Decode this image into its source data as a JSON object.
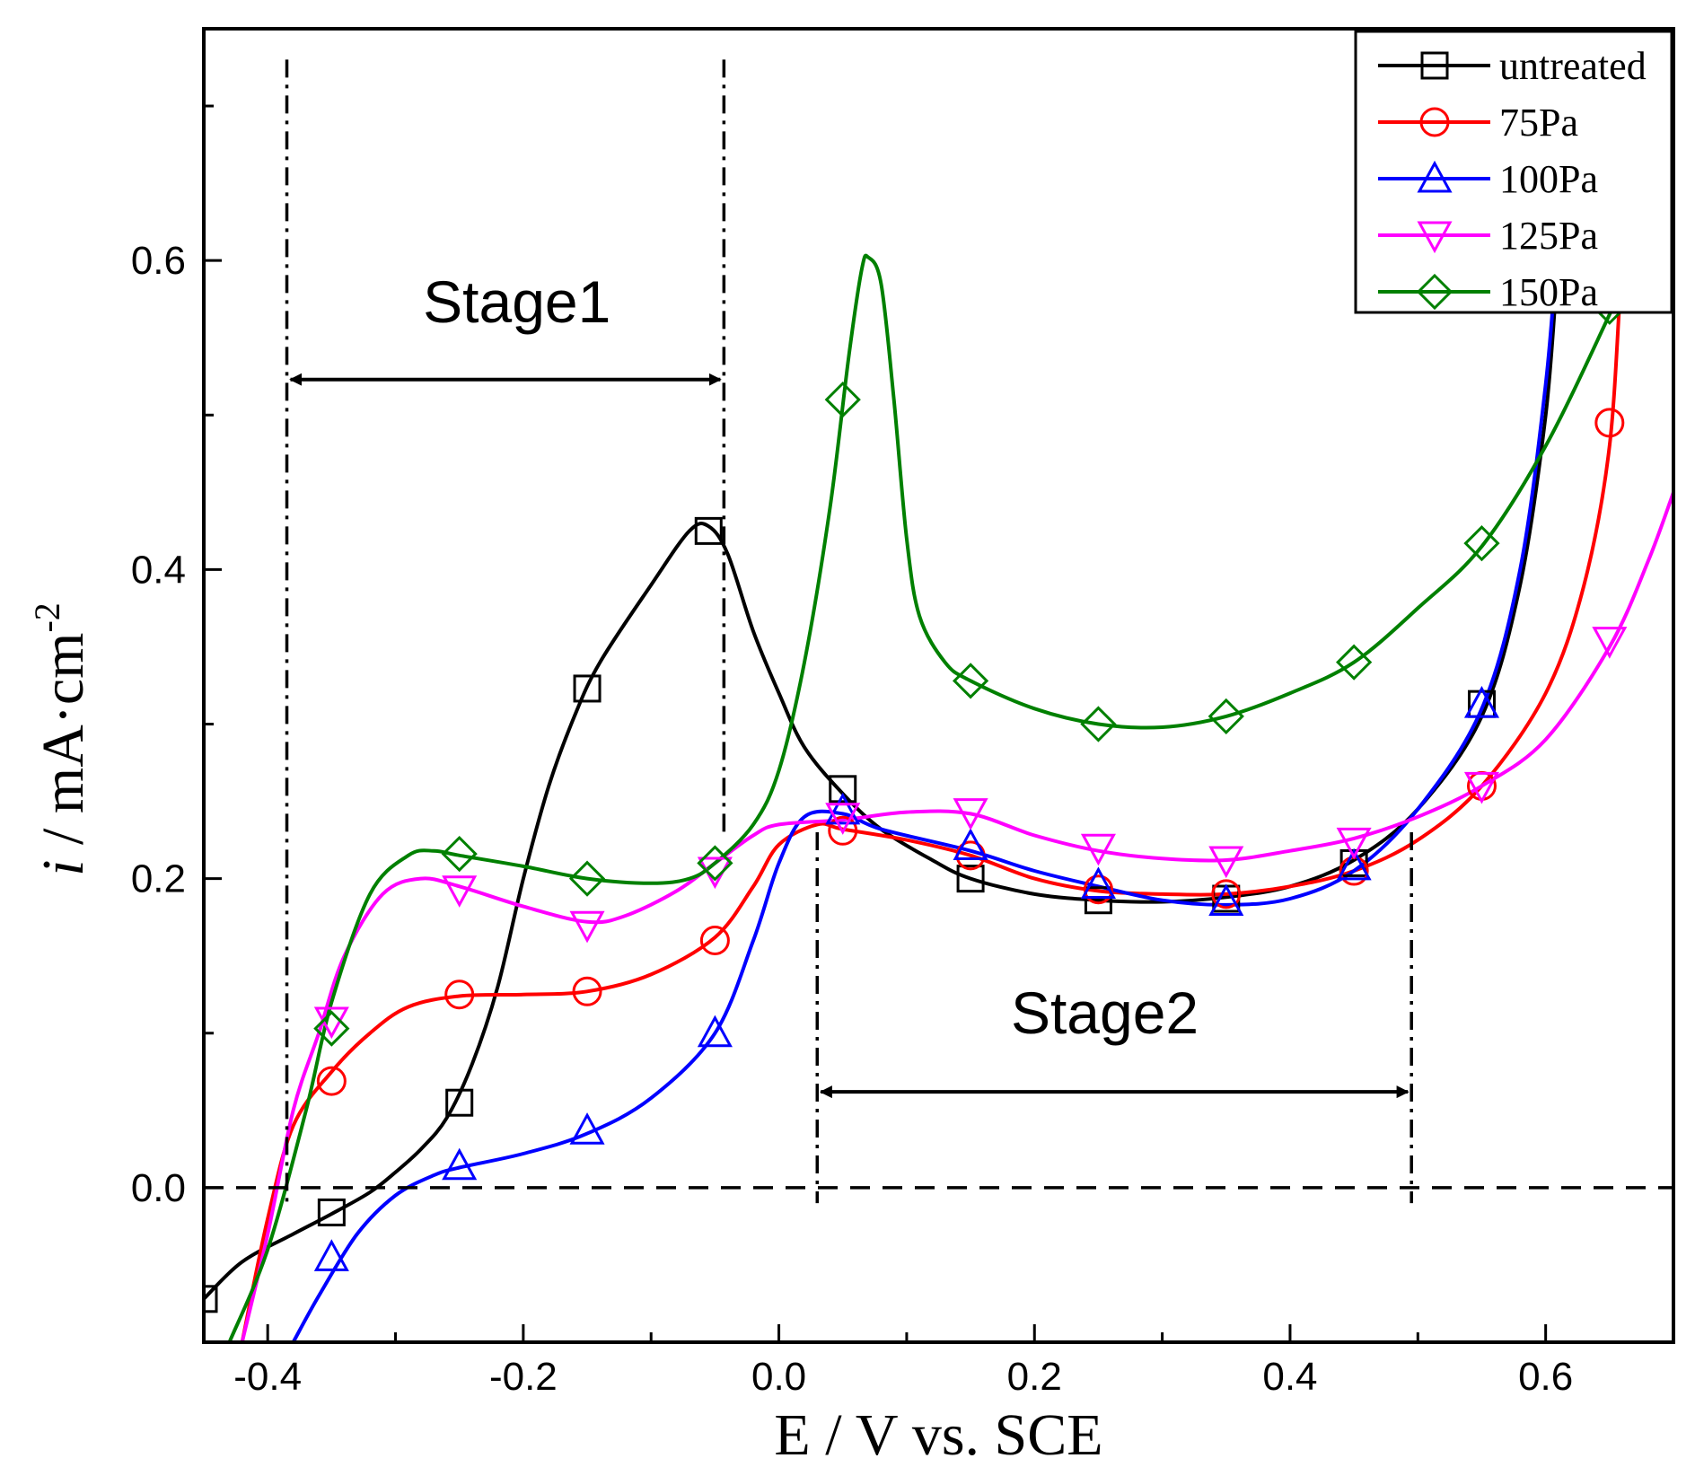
{
  "chart_data": {
    "type": "line",
    "xlabel": "E / V vs. SCE",
    "ylabel_italic": "i",
    "ylabel_rest": " / mA·cm",
    "ylabel_sup": "-2",
    "xlim": [
      -0.45,
      0.7
    ],
    "ylim": [
      -0.1,
      0.75
    ],
    "x_ticks": [
      -0.4,
      -0.2,
      0.0,
      0.2,
      0.4,
      0.6
    ],
    "x_tick_labels": [
      "-0.4",
      "-0.2",
      "0.0",
      "0.2",
      "0.4",
      "0.6"
    ],
    "y_ticks": [
      0.0,
      0.2,
      0.4,
      0.6
    ],
    "y_tick_labels": [
      "0.0",
      "0.2",
      "0.4",
      "0.6"
    ],
    "legend_position": "top-right",
    "series": [
      {
        "name": "untreated",
        "color": "#000000",
        "marker": "square",
        "curve": [
          [
            -0.45,
            -0.072
          ],
          [
            -0.42,
            -0.048
          ],
          [
            -0.38,
            -0.03
          ],
          [
            -0.35,
            -0.017
          ],
          [
            -0.32,
            -0.003
          ],
          [
            -0.3,
            0.01
          ],
          [
            -0.28,
            0.025
          ],
          [
            -0.26,
            0.045
          ],
          [
            -0.24,
            0.08
          ],
          [
            -0.22,
            0.13
          ],
          [
            -0.2,
            0.2
          ],
          [
            -0.18,
            0.26
          ],
          [
            -0.16,
            0.305
          ],
          [
            -0.14,
            0.34
          ],
          [
            -0.1,
            0.39
          ],
          [
            -0.07,
            0.425
          ],
          [
            -0.055,
            0.428
          ],
          [
            -0.04,
            0.41
          ],
          [
            -0.02,
            0.36
          ],
          [
            0.0,
            0.32
          ],
          [
            0.02,
            0.285
          ],
          [
            0.05,
            0.255
          ],
          [
            0.08,
            0.232
          ],
          [
            0.12,
            0.212
          ],
          [
            0.15,
            0.2
          ],
          [
            0.2,
            0.19
          ],
          [
            0.25,
            0.186
          ],
          [
            0.3,
            0.185
          ],
          [
            0.35,
            0.188
          ],
          [
            0.4,
            0.195
          ],
          [
            0.45,
            0.212
          ],
          [
            0.5,
            0.245
          ],
          [
            0.55,
            0.305
          ],
          [
            0.58,
            0.39
          ],
          [
            0.6,
            0.5
          ],
          [
            0.61,
            0.6
          ],
          [
            0.62,
            0.68
          ]
        ],
        "markers": [
          [
            -0.45,
            -0.072
          ],
          [
            -0.35,
            -0.016
          ],
          [
            -0.25,
            0.055
          ],
          [
            -0.15,
            0.323
          ],
          [
            -0.055,
            0.425
          ],
          [
            0.05,
            0.258
          ],
          [
            0.15,
            0.2
          ],
          [
            0.25,
            0.186
          ],
          [
            0.35,
            0.187
          ],
          [
            0.45,
            0.21
          ],
          [
            0.55,
            0.313
          ]
        ]
      },
      {
        "name": "75Pa",
        "color": "#ff0000",
        "marker": "circle",
        "curve": [
          [
            -0.42,
            -0.1
          ],
          [
            -0.4,
            -0.02
          ],
          [
            -0.38,
            0.04
          ],
          [
            -0.35,
            0.075
          ],
          [
            -0.32,
            0.1
          ],
          [
            -0.29,
            0.117
          ],
          [
            -0.25,
            0.124
          ],
          [
            -0.2,
            0.125
          ],
          [
            -0.15,
            0.127
          ],
          [
            -0.1,
            0.138
          ],
          [
            -0.05,
            0.162
          ],
          [
            -0.02,
            0.195
          ],
          [
            0.0,
            0.222
          ],
          [
            0.03,
            0.235
          ],
          [
            0.05,
            0.232
          ],
          [
            0.1,
            0.225
          ],
          [
            0.15,
            0.215
          ],
          [
            0.2,
            0.2
          ],
          [
            0.25,
            0.192
          ],
          [
            0.3,
            0.19
          ],
          [
            0.35,
            0.19
          ],
          [
            0.4,
            0.195
          ],
          [
            0.45,
            0.205
          ],
          [
            0.5,
            0.225
          ],
          [
            0.55,
            0.26
          ],
          [
            0.6,
            0.32
          ],
          [
            0.63,
            0.39
          ],
          [
            0.65,
            0.48
          ],
          [
            0.66,
            0.6
          ],
          [
            0.67,
            0.68
          ]
        ],
        "markers": [
          [
            -0.35,
            0.069
          ],
          [
            -0.25,
            0.125
          ],
          [
            -0.15,
            0.127
          ],
          [
            -0.05,
            0.16
          ],
          [
            0.05,
            0.231
          ],
          [
            0.15,
            0.215
          ],
          [
            0.25,
            0.193
          ],
          [
            0.35,
            0.19
          ],
          [
            0.45,
            0.205
          ],
          [
            0.55,
            0.26
          ],
          [
            0.65,
            0.495
          ]
        ]
      },
      {
        "name": "100Pa",
        "color": "#0000ff",
        "marker": "triangle-up",
        "curve": [
          [
            -0.38,
            -0.1
          ],
          [
            -0.36,
            -0.07
          ],
          [
            -0.33,
            -0.03
          ],
          [
            -0.3,
            -0.005
          ],
          [
            -0.27,
            0.008
          ],
          [
            -0.25,
            0.013
          ],
          [
            -0.2,
            0.022
          ],
          [
            -0.15,
            0.035
          ],
          [
            -0.1,
            0.058
          ],
          [
            -0.05,
            0.1
          ],
          [
            -0.02,
            0.16
          ],
          [
            0.0,
            0.21
          ],
          [
            0.02,
            0.24
          ],
          [
            0.05,
            0.242
          ],
          [
            0.08,
            0.232
          ],
          [
            0.15,
            0.218
          ],
          [
            0.2,
            0.205
          ],
          [
            0.25,
            0.195
          ],
          [
            0.3,
            0.186
          ],
          [
            0.35,
            0.183
          ],
          [
            0.4,
            0.187
          ],
          [
            0.45,
            0.205
          ],
          [
            0.5,
            0.245
          ],
          [
            0.55,
            0.31
          ],
          [
            0.58,
            0.4
          ],
          [
            0.6,
            0.52
          ],
          [
            0.61,
            0.62
          ],
          [
            0.615,
            0.68
          ]
        ],
        "markers": [
          [
            -0.35,
            -0.045
          ],
          [
            -0.25,
            0.014
          ],
          [
            -0.15,
            0.037
          ],
          [
            -0.05,
            0.1
          ],
          [
            0.05,
            0.244
          ],
          [
            0.15,
            0.221
          ],
          [
            0.25,
            0.196
          ],
          [
            0.35,
            0.185
          ],
          [
            0.45,
            0.208
          ],
          [
            0.55,
            0.313
          ]
        ]
      },
      {
        "name": "125Pa",
        "color": "#ff00ff",
        "marker": "triangle-down",
        "curve": [
          [
            -0.42,
            -0.1
          ],
          [
            -0.4,
            -0.03
          ],
          [
            -0.38,
            0.05
          ],
          [
            -0.36,
            0.1
          ],
          [
            -0.34,
            0.15
          ],
          [
            -0.31,
            0.19
          ],
          [
            -0.28,
            0.2
          ],
          [
            -0.25,
            0.195
          ],
          [
            -0.2,
            0.182
          ],
          [
            -0.15,
            0.172
          ],
          [
            -0.12,
            0.176
          ],
          [
            -0.08,
            0.192
          ],
          [
            -0.05,
            0.21
          ],
          [
            -0.02,
            0.228
          ],
          [
            0.0,
            0.235
          ],
          [
            0.05,
            0.238
          ],
          [
            0.1,
            0.243
          ],
          [
            0.15,
            0.242
          ],
          [
            0.2,
            0.228
          ],
          [
            0.25,
            0.218
          ],
          [
            0.3,
            0.213
          ],
          [
            0.35,
            0.212
          ],
          [
            0.4,
            0.218
          ],
          [
            0.45,
            0.226
          ],
          [
            0.5,
            0.24
          ],
          [
            0.55,
            0.26
          ],
          [
            0.6,
            0.29
          ],
          [
            0.65,
            0.35
          ],
          [
            0.68,
            0.405
          ],
          [
            0.7,
            0.45
          ]
        ],
        "markers": [
          [
            -0.35,
            0.108
          ],
          [
            -0.25,
            0.193
          ],
          [
            -0.15,
            0.17
          ],
          [
            -0.05,
            0.205
          ],
          [
            0.05,
            0.24
          ],
          [
            0.15,
            0.243
          ],
          [
            0.25,
            0.22
          ],
          [
            0.35,
            0.212
          ],
          [
            0.45,
            0.224
          ],
          [
            0.55,
            0.26
          ],
          [
            0.65,
            0.354
          ]
        ]
      },
      {
        "name": "150Pa",
        "color": "#008000",
        "marker": "diamond",
        "curve": [
          [
            -0.43,
            -0.1
          ],
          [
            -0.4,
            -0.04
          ],
          [
            -0.37,
            0.05
          ],
          [
            -0.35,
            0.12
          ],
          [
            -0.32,
            0.19
          ],
          [
            -0.29,
            0.215
          ],
          [
            -0.27,
            0.218
          ],
          [
            -0.25,
            0.215
          ],
          [
            -0.2,
            0.208
          ],
          [
            -0.15,
            0.2
          ],
          [
            -0.1,
            0.197
          ],
          [
            -0.07,
            0.2
          ],
          [
            -0.05,
            0.21
          ],
          [
            -0.02,
            0.235
          ],
          [
            0.0,
            0.27
          ],
          [
            0.02,
            0.34
          ],
          [
            0.04,
            0.44
          ],
          [
            0.055,
            0.54
          ],
          [
            0.065,
            0.595
          ],
          [
            0.07,
            0.602
          ],
          [
            0.08,
            0.585
          ],
          [
            0.09,
            0.51
          ],
          [
            0.1,
            0.42
          ],
          [
            0.11,
            0.37
          ],
          [
            0.13,
            0.34
          ],
          [
            0.15,
            0.328
          ],
          [
            0.2,
            0.31
          ],
          [
            0.25,
            0.3
          ],
          [
            0.3,
            0.298
          ],
          [
            0.35,
            0.305
          ],
          [
            0.4,
            0.32
          ],
          [
            0.45,
            0.34
          ],
          [
            0.5,
            0.375
          ],
          [
            0.55,
            0.415
          ],
          [
            0.6,
            0.48
          ],
          [
            0.65,
            0.565
          ],
          [
            0.68,
            0.62
          ]
        ],
        "markers": [
          [
            -0.35,
            0.103
          ],
          [
            -0.25,
            0.216
          ],
          [
            -0.15,
            0.2
          ],
          [
            -0.05,
            0.21
          ],
          [
            0.05,
            0.51
          ],
          [
            0.15,
            0.328
          ],
          [
            0.25,
            0.3
          ],
          [
            0.35,
            0.305
          ],
          [
            0.45,
            0.34
          ],
          [
            0.55,
            0.417
          ],
          [
            0.65,
            0.57
          ]
        ]
      }
    ],
    "annotations": {
      "stage1": {
        "label": "Stage1",
        "x_start": -0.385,
        "x_end": -0.043,
        "arrow_y": 0.523,
        "label_x": -0.205,
        "label_y": 0.56
      },
      "stage2": {
        "label": "Stage2",
        "x_start": 0.03,
        "x_end": 0.495,
        "arrow_y": 0.062,
        "label_x": 0.255,
        "label_y": 0.1
      },
      "zero_line_y": 0.0
    }
  }
}
